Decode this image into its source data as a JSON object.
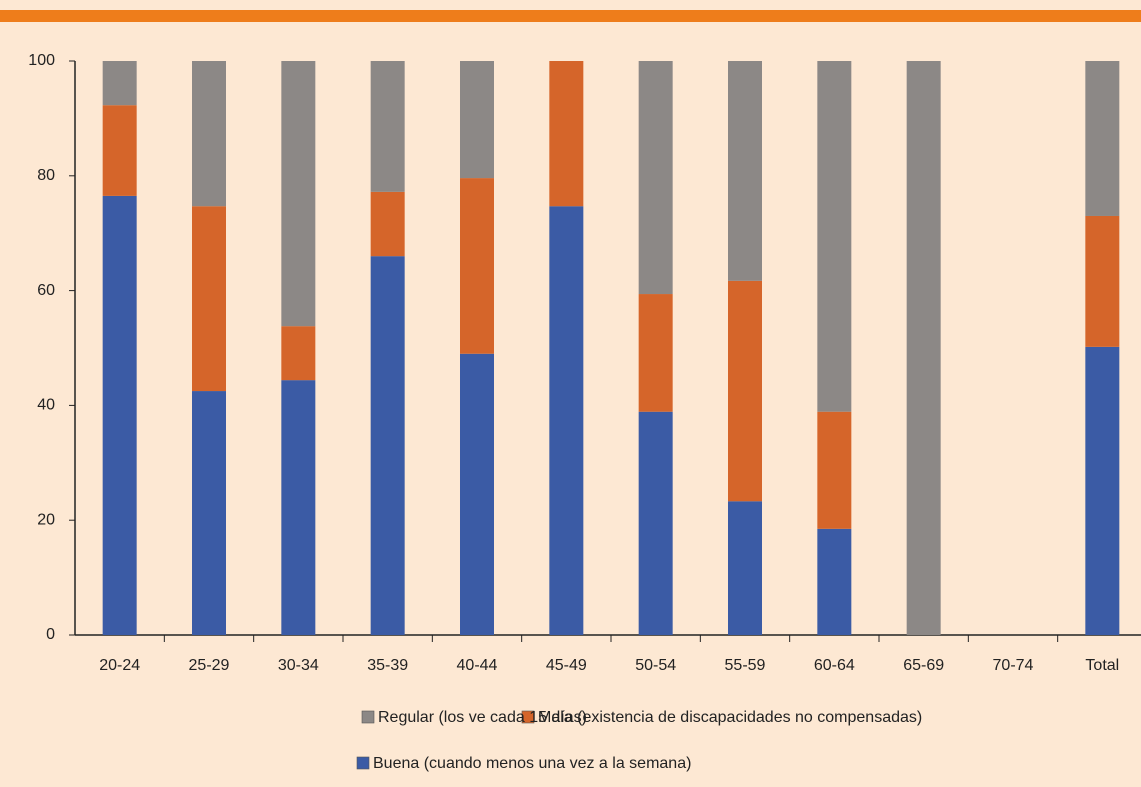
{
  "chart_data": {
    "type": "stacked_bar",
    "categories": [
      "20-24",
      "25-29",
      "30-34",
      "35-39",
      "40-44",
      "45-49",
      "50-54",
      "55-59",
      "60-64",
      "65-69",
      "70-74",
      "Total"
    ],
    "series": [
      {
        "name": "Buena (cuando menos una vez a la semana)",
        "color": "#3b5ba5",
        "values": [
          76.5,
          42.5,
          44.4,
          66.0,
          49.0,
          74.7,
          38.9,
          23.3,
          18.5,
          0,
          0,
          50.2
        ]
      },
      {
        "name": "Mala (existencia de discapacidades no compensadas)",
        "color": "#d5652a",
        "values": [
          15.8,
          32.2,
          9.4,
          11.2,
          30.6,
          25.3,
          20.5,
          38.4,
          20.4,
          0,
          0,
          22.8
        ]
      },
      {
        "name": "Regular (los ve cada 15 días)",
        "color": "#8c8886",
        "values": [
          7.7,
          25.3,
          46.2,
          22.8,
          20.4,
          0,
          40.6,
          38.3,
          61.1,
          100,
          0,
          27.0
        ]
      }
    ],
    "ylim": [
      0,
      100
    ],
    "yticks": [
      0,
      20,
      40,
      60,
      80,
      100
    ]
  }
}
